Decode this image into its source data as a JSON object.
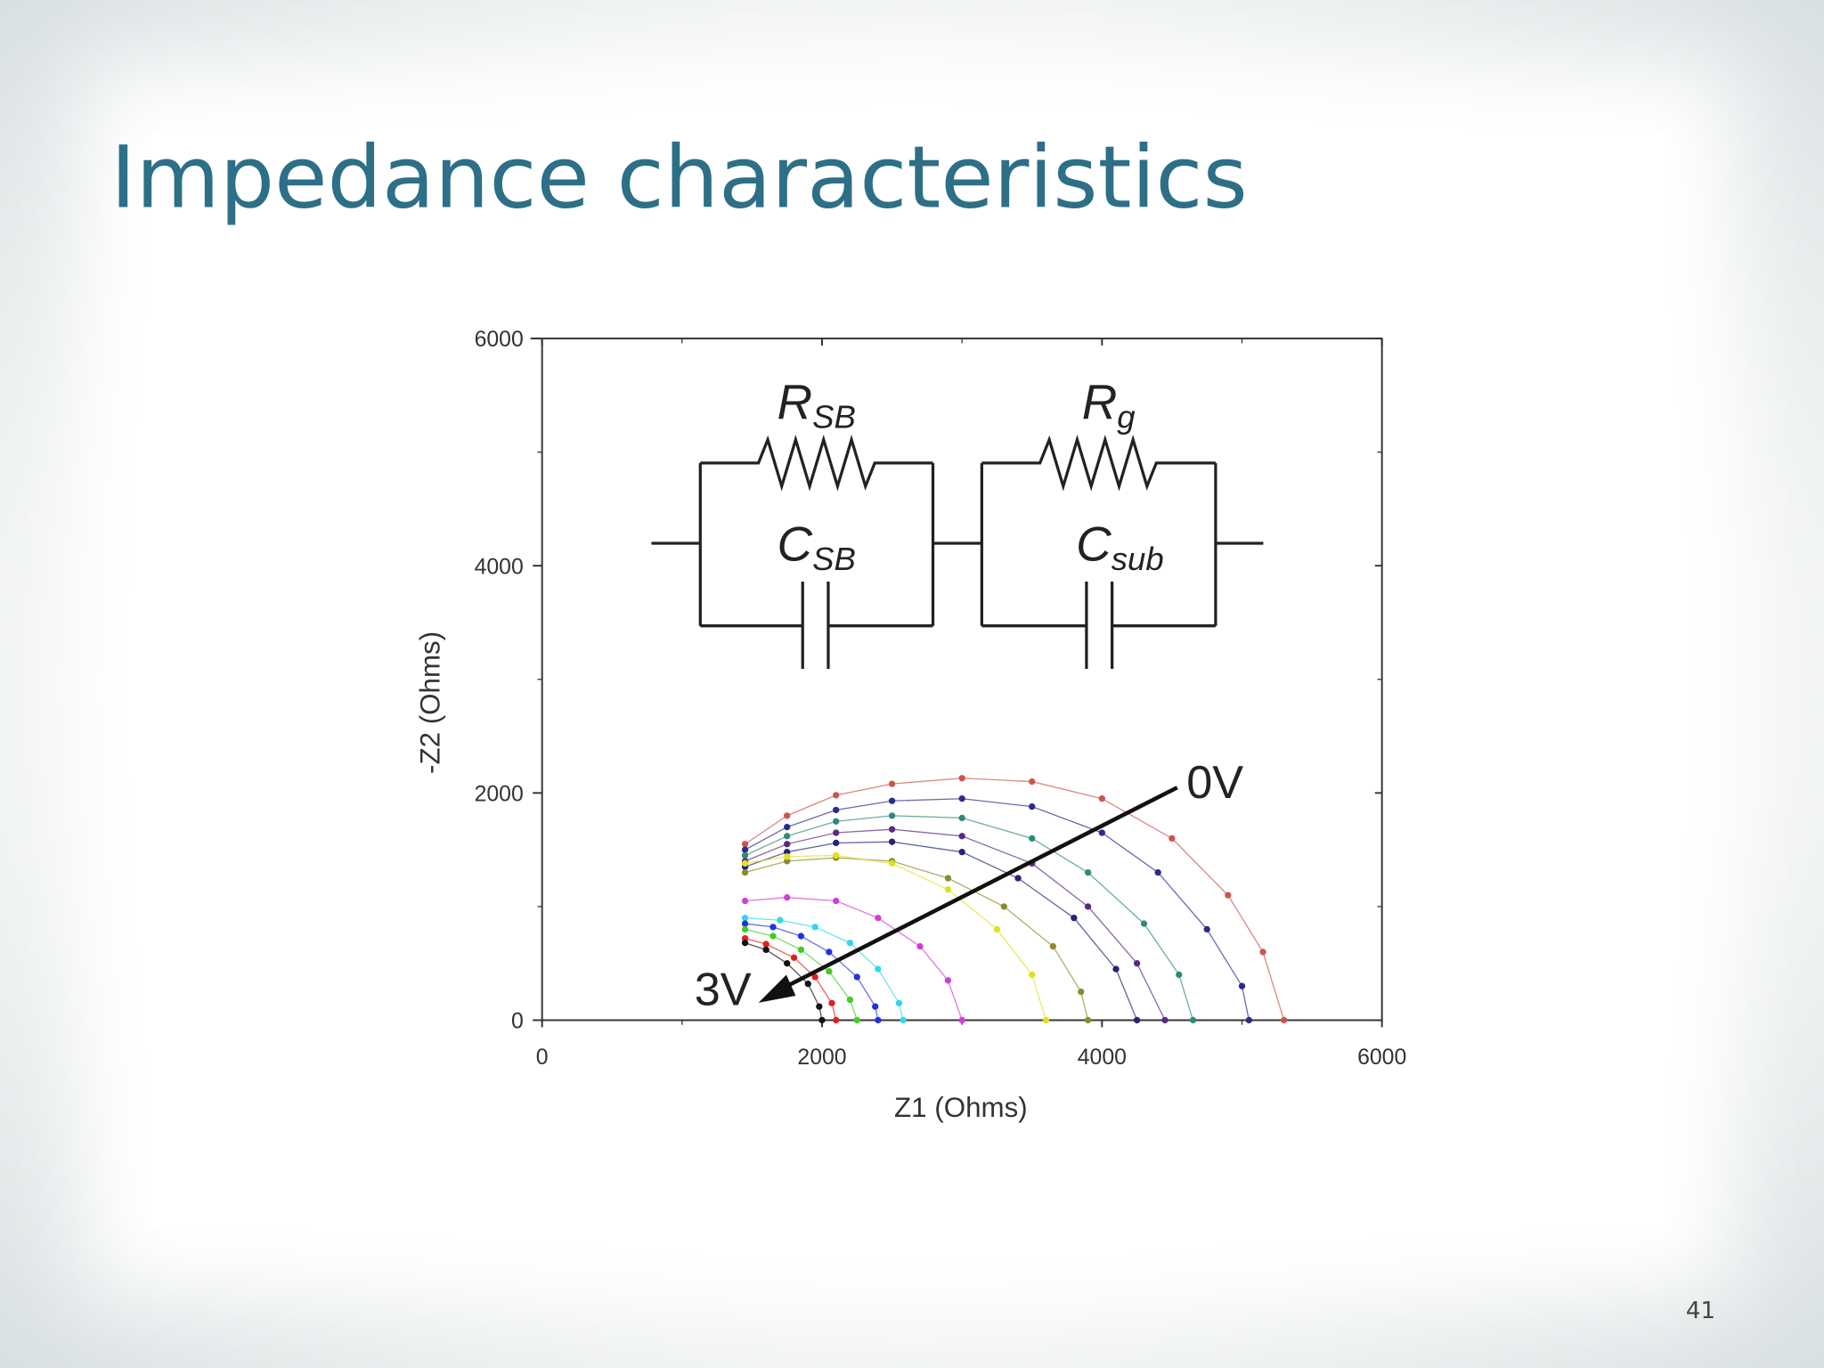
{
  "slide": {
    "title": "Impedance characteristics",
    "page_number": "41"
  },
  "chart_data": {
    "type": "scatter",
    "x_label": "Z1 (Ohms)",
    "y_label": "-Z2 (Ohms)",
    "xlim": [
      0,
      6000
    ],
    "ylim": [
      0,
      6000
    ],
    "xticks": [
      0,
      2000,
      4000,
      6000
    ],
    "yticks": [
      0,
      2000,
      4000,
      6000
    ],
    "annotations": {
      "start": "0V",
      "end": "3V",
      "circuit": [
        {
          "main": "R",
          "sub": "SB"
        },
        {
          "main": "C",
          "sub": "SB"
        },
        {
          "main": "R",
          "sub": "g"
        },
        {
          "main": "C",
          "sub": "sub"
        }
      ]
    },
    "series": [
      {
        "color": "#c9574f",
        "x": [
          1450,
          1750,
          2100,
          2500,
          3000,
          3500,
          4000,
          4500,
          4900,
          5150,
          5300
        ],
        "values": [
          1550,
          1800,
          1980,
          2080,
          2130,
          2100,
          1950,
          1600,
          1100,
          600,
          0
        ]
      },
      {
        "color": "#2b2b8c",
        "x": [
          1450,
          1750,
          2100,
          2500,
          3000,
          3500,
          4000,
          4400,
          4750,
          5000,
          5050
        ],
        "values": [
          1500,
          1700,
          1850,
          1930,
          1950,
          1880,
          1650,
          1300,
          800,
          300,
          0
        ]
      },
      {
        "color": "#2e8b7a",
        "x": [
          1450,
          1750,
          2100,
          2500,
          3000,
          3500,
          3900,
          4300,
          4550,
          4650
        ],
        "values": [
          1450,
          1620,
          1750,
          1800,
          1780,
          1600,
          1300,
          850,
          400,
          0
        ]
      },
      {
        "color": "#5a2a82",
        "x": [
          1450,
          1750,
          2100,
          2500,
          3000,
          3500,
          3900,
          4250,
          4450
        ],
        "values": [
          1400,
          1550,
          1650,
          1680,
          1620,
          1380,
          1000,
          500,
          0
        ]
      },
      {
        "color": "#23237a",
        "x": [
          1450,
          1750,
          2100,
          2500,
          3000,
          3400,
          3800,
          4100,
          4250
        ],
        "values": [
          1350,
          1480,
          1560,
          1570,
          1480,
          1250,
          900,
          450,
          0
        ]
      },
      {
        "color": "#8b8b2e",
        "x": [
          1450,
          1750,
          2100,
          2500,
          2900,
          3300,
          3650,
          3850,
          3900
        ],
        "values": [
          1300,
          1400,
          1430,
          1400,
          1250,
          1000,
          650,
          250,
          0
        ]
      },
      {
        "color": "#e0e020",
        "x": [
          1450,
          1750,
          2100,
          2500,
          2900,
          3250,
          3500,
          3600
        ],
        "values": [
          1380,
          1440,
          1450,
          1380,
          1150,
          800,
          400,
          0
        ]
      },
      {
        "color": "#d040d0",
        "x": [
          1450,
          1750,
          2100,
          2400,
          2700,
          2900,
          3000
        ],
        "values": [
          1050,
          1080,
          1050,
          900,
          650,
          350,
          0
        ]
      },
      {
        "color": "#30d8e8",
        "x": [
          1450,
          1700,
          1950,
          2200,
          2400,
          2550,
          2580
        ],
        "values": [
          900,
          880,
          820,
          680,
          450,
          150,
          0
        ]
      },
      {
        "color": "#2233dd",
        "x": [
          1450,
          1650,
          1850,
          2050,
          2250,
          2380,
          2400
        ],
        "values": [
          850,
          820,
          740,
          600,
          380,
          120,
          0
        ]
      },
      {
        "color": "#44cc22",
        "x": [
          1450,
          1650,
          1850,
          2050,
          2200,
          2250
        ],
        "values": [
          800,
          740,
          620,
          430,
          180,
          0
        ]
      },
      {
        "color": "#e02020",
        "x": [
          1450,
          1600,
          1800,
          1950,
          2070,
          2100
        ],
        "values": [
          720,
          670,
          550,
          380,
          150,
          0
        ]
      },
      {
        "color": "#111111",
        "x": [
          1450,
          1600,
          1750,
          1900,
          1980,
          2000
        ],
        "values": [
          680,
          620,
          500,
          320,
          120,
          0
        ]
      }
    ]
  }
}
